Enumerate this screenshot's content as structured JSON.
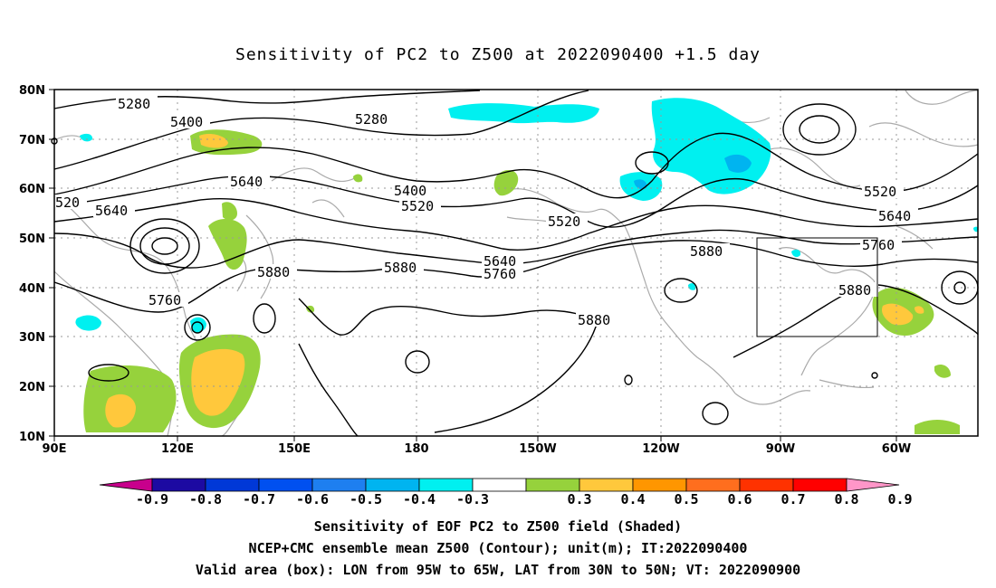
{
  "title": "Sensitivity of PC2 to Z500 at 2022090400 +1.5 day",
  "lat_labels": [
    "80N",
    "70N",
    "60N",
    "50N",
    "40N",
    "30N",
    "20N",
    "10N"
  ],
  "lon_labels": [
    "90E",
    "120E",
    "150E",
    "180",
    "150W",
    "120W",
    "90W",
    "60W"
  ],
  "contours": {
    "labels": [
      "5280",
      "5280",
      "5400",
      "5400",
      "5520",
      "5520",
      "5520",
      "520",
      "5640",
      "5640",
      "5640",
      "5640",
      "5760",
      "5760",
      "5760",
      "5880",
      "5880",
      "5880",
      "5880",
      "5880"
    ]
  },
  "colorbar": {
    "labels": [
      "-0.9",
      "-0.8",
      "-0.7",
      "-0.6",
      "-0.5",
      "-0.4",
      "-0.3",
      "0.3",
      "0.4",
      "0.5",
      "0.6",
      "0.7",
      "0.8",
      "0.9"
    ],
    "colors": [
      "#1c0aa2",
      "#0038d7",
      "#0050f0",
      "#1e7ff0",
      "#00b4f0",
      "#00f0f0",
      "#ffffff",
      "#96d23c",
      "#ffc83c",
      "#ff9600",
      "#ff6e1e",
      "#ff3200",
      "#ff0000"
    ],
    "low_end_color": "#c8008c",
    "high_end_color": "#ff96c8"
  },
  "valid_box": {
    "lon_west": -95,
    "lon_east": -65,
    "lat_south": 30,
    "lat_north": 50
  },
  "captions": [
    "Sensitivity of EOF PC2 to Z500 field (Shaded)",
    "NCEP+CMC ensemble mean Z500 (Contour); unit(m); IT:2022090400",
    "Valid area (box): LON from 95W to 65W, LAT from 30N to 50N; VT: 2022090900"
  ]
}
